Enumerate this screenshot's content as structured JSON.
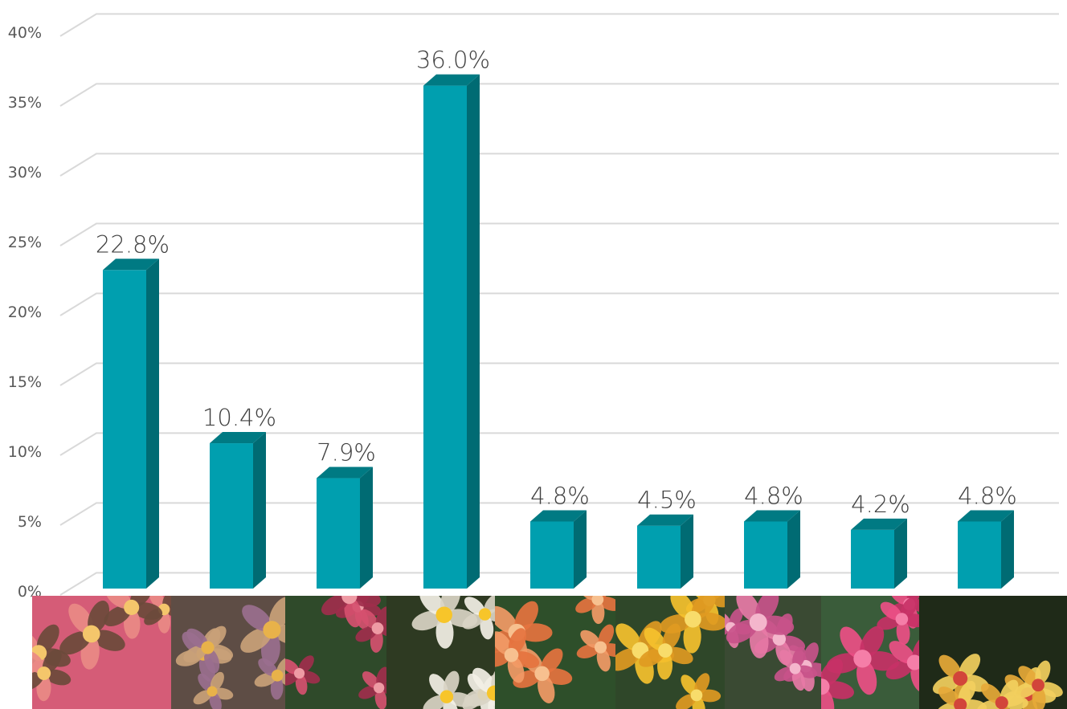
{
  "chart_data": {
    "type": "bar",
    "style": "3d-column",
    "categories": [
      "",
      "",
      "",
      "",
      "",
      "",
      "",
      "",
      ""
    ],
    "values": [
      22.8,
      10.4,
      7.9,
      36.0,
      4.8,
      4.5,
      4.8,
      4.2,
      4.8
    ],
    "data_labels": [
      "22.8%",
      "10.4%",
      "7.9%",
      "36.0%",
      "4.8%",
      "4.5%",
      "4.8%",
      "4.2%",
      "4.8%"
    ],
    "y_ticks": [
      "0%",
      "5%",
      "10%",
      "15%",
      "20%",
      "25%",
      "30%",
      "35%",
      "40%"
    ],
    "ylim": [
      0,
      40
    ],
    "grid": true,
    "legend": "none",
    "colors": {
      "bar_front": "#009faf",
      "bar_side": "#006b73",
      "bar_top": "#007a83",
      "grid": "#d9d9d9"
    },
    "category_images": [
      {
        "name": "plumeria-pink-yellow-photo",
        "palette": [
          "#e98a86",
          "#f4c66b",
          "#d55c77",
          "#6b4a3b"
        ]
      },
      {
        "name": "plumeria-purple-yellow-photo",
        "palette": [
          "#9a6f8e",
          "#e8b24a",
          "#5e4d45",
          "#c9a178"
        ]
      },
      {
        "name": "plumeria-red-pink-photo",
        "palette": [
          "#d5506f",
          "#ee9aa4",
          "#2f4a2a",
          "#a02e4c"
        ]
      },
      {
        "name": "plumeria-white-yellow-photo",
        "palette": [
          "#f3f0e6",
          "#f7c52a",
          "#2e3a22",
          "#d9d4c4"
        ]
      },
      {
        "name": "plumeria-orange-photo",
        "palette": [
          "#f29a66",
          "#f7c08f",
          "#2e4f2a",
          "#e5733f"
        ]
      },
      {
        "name": "plumeria-yellow-photo",
        "palette": [
          "#f5c12e",
          "#f8dc6b",
          "#2f4729",
          "#e09a22"
        ]
      },
      {
        "name": "plumeria-light-pink-photo",
        "palette": [
          "#e77aa6",
          "#f4b6cc",
          "#3a4a33",
          "#c8528a"
        ]
      },
      {
        "name": "plumeria-hot-pink-photo",
        "palette": [
          "#ec4f86",
          "#f57ea8",
          "#3a5c3a",
          "#c73166"
        ]
      },
      {
        "name": "plumeria-red-yellow-photo",
        "palette": [
          "#e6a938",
          "#d2453a",
          "#1f2a18",
          "#f2cf5e"
        ]
      }
    ]
  }
}
